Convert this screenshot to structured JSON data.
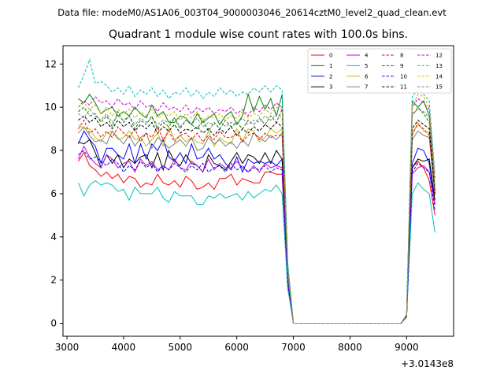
{
  "chart_data": {
    "type": "line",
    "suptitle": "Data file: modeM0/AS1A06_003T04_9000003046_20614cztM0_level2_quad_clean.evt",
    "title": "Quadrant 1 module wise count rates with 100.0s bins.",
    "xlabel": "",
    "ylabel": "",
    "x_offset_label": "+3.0143e8",
    "xlim": [
      2930,
      9830
    ],
    "ylim": [
      -0.6,
      12.85
    ],
    "xticks": [
      3000,
      4000,
      5000,
      6000,
      7000,
      8000,
      9000
    ],
    "yticks": [
      0,
      2,
      4,
      6,
      8,
      10,
      12
    ],
    "x": [
      3200,
      3300,
      3400,
      3500,
      3600,
      3700,
      3800,
      3900,
      4000,
      4100,
      4200,
      4300,
      4400,
      4500,
      4600,
      4700,
      4800,
      4900,
      5000,
      5100,
      5200,
      5300,
      5400,
      5500,
      5600,
      5700,
      5800,
      5900,
      6000,
      6100,
      6200,
      6300,
      6400,
      6500,
      6600,
      6700,
      6800,
      6900,
      7000,
      7100,
      7200,
      7300,
      7400,
      7500,
      7600,
      7700,
      7800,
      7900,
      8000,
      8100,
      8200,
      8300,
      8400,
      8500,
      8600,
      8700,
      8800,
      8900,
      9000,
      9100,
      9200,
      9300,
      9400,
      9500
    ],
    "legend": {
      "location": "upper right",
      "ncol": 4
    },
    "series": [
      {
        "name": "0",
        "color": "#ff0000",
        "dash": "solid",
        "values": [
          7.5,
          7.9,
          7.3,
          7.1,
          6.8,
          7.0,
          6.7,
          6.9,
          6.5,
          6.8,
          6.7,
          6.3,
          6.5,
          6.4,
          6.9,
          6.5,
          6.4,
          6.6,
          6.3,
          6.8,
          6.6,
          6.2,
          6.3,
          6.5,
          6.2,
          6.7,
          6.7,
          6.9,
          6.4,
          6.7,
          6.6,
          6.5,
          6.5,
          7.0,
          7.0,
          6.9,
          6.9,
          1.8,
          0,
          0,
          0,
          0,
          0,
          0,
          0,
          0,
          0,
          0,
          0,
          0,
          0,
          0,
          0,
          0,
          0,
          0,
          0,
          0,
          0.3,
          7.2,
          7.5,
          7.2,
          6.6,
          5.0
        ]
      },
      {
        "name": "1",
        "color": "#008000",
        "dash": "solid",
        "values": [
          10.4,
          10.2,
          10.6,
          10.2,
          9.7,
          9.9,
          10.0,
          9.6,
          9.8,
          9.6,
          10.0,
          9.7,
          9.5,
          10.1,
          9.6,
          9.8,
          9.3,
          9.3,
          9.6,
          9.5,
          9.2,
          9.7,
          9.3,
          9.5,
          9.7,
          9.2,
          9.6,
          9.8,
          9.2,
          9.6,
          10.6,
          9.8,
          10.5,
          9.9,
          10.4,
          9.6,
          10.6,
          2.7,
          0,
          0,
          0,
          0,
          0,
          0,
          0,
          0,
          0,
          0,
          0,
          0,
          0,
          0,
          0,
          0,
          0,
          0,
          0,
          0,
          0.4,
          10.3,
          10.0,
          10.3,
          9.6,
          6.2
        ]
      },
      {
        "name": "2",
        "color": "#0000ff",
        "dash": "solid",
        "values": [
          8.3,
          8.9,
          8.5,
          8.2,
          7.4,
          8.1,
          8.1,
          7.8,
          7.6,
          8.3,
          7.4,
          8.3,
          7.6,
          8.3,
          8.0,
          8.5,
          7.7,
          7.5,
          7.9,
          7.4,
          8.3,
          7.6,
          7.7,
          8.1,
          7.6,
          7.8,
          7.4,
          7.1,
          7.7,
          7.0,
          7.6,
          7.4,
          7.5,
          7.4,
          7.5,
          7.3,
          7.6,
          1.9,
          0,
          0,
          0,
          0,
          0,
          0,
          0,
          0,
          0,
          0,
          0,
          0,
          0,
          0,
          0,
          0,
          0,
          0,
          0,
          0,
          0.3,
          7.4,
          8.1,
          8.0,
          7.4,
          5.5
        ]
      },
      {
        "name": "3",
        "color": "#000000",
        "dash": "solid",
        "values": [
          8.4,
          8.3,
          8.5,
          7.9,
          7.2,
          7.8,
          7.4,
          7.8,
          7.2,
          7.6,
          7.4,
          7.7,
          7.8,
          7.2,
          7.9,
          7.1,
          8.0,
          7.5,
          7.3,
          7.8,
          7.4,
          7.3,
          7.0,
          7.8,
          7.4,
          7.3,
          7.1,
          7.5,
          7.9,
          7.4,
          7.8,
          7.7,
          7.4,
          7.9,
          7.4,
          8.0,
          7.6,
          2.0,
          0,
          0,
          0,
          0,
          0,
          0,
          0,
          0,
          0,
          0,
          0,
          0,
          0,
          0,
          0,
          0,
          0,
          0,
          0,
          0,
          0.3,
          7.2,
          7.6,
          7.5,
          7.6,
          5.7
        ]
      },
      {
        "name": "4",
        "color": "#cc00cc",
        "dash": "solid",
        "values": [
          7.6,
          8.2,
          7.7,
          7.4,
          7.2,
          7.8,
          7.6,
          7.2,
          7.4,
          7.5,
          7.0,
          7.6,
          7.3,
          7.5,
          7.1,
          7.3,
          7.1,
          7.6,
          7.2,
          7.1,
          7.5,
          7.3,
          7.0,
          7.6,
          7.1,
          7.4,
          7.2,
          7.2,
          7.5,
          7.2,
          7.0,
          7.3,
          7.0,
          7.4,
          7.2,
          7.3,
          7.2,
          1.9,
          0,
          0,
          0,
          0,
          0,
          0,
          0,
          0,
          0,
          0,
          0,
          0,
          0,
          0,
          0,
          0,
          0,
          0,
          0,
          0,
          0.3,
          6.9,
          7.2,
          7.3,
          7.0,
          5.5
        ]
      },
      {
        "name": "5",
        "color": "#00bfbf",
        "dash": "solid",
        "values": [
          6.5,
          5.9,
          6.4,
          6.6,
          6.4,
          6.5,
          6.4,
          6.1,
          6.2,
          5.7,
          6.3,
          6.0,
          6.0,
          6.0,
          6.3,
          5.8,
          5.6,
          6.1,
          5.9,
          5.9,
          5.9,
          5.5,
          5.5,
          5.9,
          5.8,
          6.0,
          5.8,
          5.9,
          6.0,
          5.7,
          6.1,
          5.8,
          6.0,
          6.2,
          6.1,
          6.4,
          6.0,
          1.6,
          0,
          0,
          0,
          0,
          0,
          0,
          0,
          0,
          0,
          0,
          0,
          0,
          0,
          0,
          0,
          0,
          0,
          0,
          0,
          0,
          0.3,
          6.0,
          6.5,
          6.2,
          6.0,
          4.2
        ]
      },
      {
        "name": "6",
        "color": "#bfbf00",
        "dash": "solid",
        "values": [
          9.2,
          9.0,
          9.0,
          8.6,
          8.4,
          8.8,
          8.9,
          8.5,
          8.6,
          8.9,
          8.5,
          8.6,
          8.2,
          8.5,
          8.8,
          8.2,
          9.1,
          8.5,
          8.7,
          8.4,
          8.6,
          8.4,
          8.3,
          8.9,
          8.2,
          8.6,
          8.4,
          8.3,
          9.0,
          8.4,
          9.0,
          8.9,
          8.4,
          8.6,
          9.0,
          8.8,
          9.0,
          2.3,
          0,
          0,
          0,
          0,
          0,
          0,
          0,
          0,
          0,
          0,
          0,
          0,
          0,
          0,
          0,
          0,
          0,
          0,
          0,
          0,
          0.3,
          8.7,
          9.3,
          8.9,
          8.8,
          6.0
        ]
      },
      {
        "name": "7",
        "color": "#808080",
        "dash": "solid",
        "values": [
          8.8,
          9.1,
          8.7,
          8.4,
          8.5,
          8.3,
          8.9,
          8.6,
          8.3,
          8.7,
          8.2,
          8.6,
          8.8,
          8.1,
          8.6,
          8.4,
          8.1,
          8.3,
          8.5,
          8.2,
          8.6,
          8.0,
          8.1,
          8.6,
          8.3,
          8.5,
          8.2,
          8.4,
          8.1,
          8.5,
          8.2,
          8.8,
          8.6,
          8.4,
          8.7,
          8.5,
          8.8,
          2.2,
          0,
          0,
          0,
          0,
          0,
          0,
          0,
          0,
          0,
          0,
          0,
          0,
          0,
          0,
          0,
          0,
          0,
          0,
          0,
          0,
          0.3,
          8.5,
          8.9,
          8.7,
          8.6,
          5.9
        ]
      },
      {
        "name": "8",
        "color": "#ff0000",
        "dash": "dashed",
        "values": [
          9.0,
          9.4,
          8.8,
          9.0,
          8.6,
          8.9,
          8.6,
          9.1,
          8.8,
          8.6,
          9.0,
          8.4,
          8.8,
          8.6,
          9.1,
          8.5,
          8.9,
          8.4,
          8.7,
          8.8,
          8.5,
          8.8,
          8.4,
          8.7,
          8.5,
          8.9,
          8.6,
          8.6,
          8.8,
          8.4,
          8.7,
          8.8,
          8.5,
          8.8,
          8.6,
          8.7,
          8.7,
          2.3,
          0,
          0,
          0,
          0,
          0,
          0,
          0,
          0,
          0,
          0,
          0,
          0,
          0,
          0,
          0,
          0,
          0,
          0,
          0,
          0,
          0.3,
          8.8,
          9.2,
          9.0,
          8.7,
          6.1
        ]
      },
      {
        "name": "9",
        "color": "#008000",
        "dash": "dashed",
        "values": [
          9.8,
          10.0,
          9.6,
          9.7,
          9.3,
          9.6,
          9.1,
          9.8,
          9.3,
          9.6,
          9.0,
          9.4,
          9.2,
          9.6,
          9.0,
          9.3,
          9.1,
          9.5,
          9.0,
          9.4,
          9.2,
          9.0,
          9.4,
          8.9,
          9.3,
          9.0,
          9.4,
          9.1,
          9.3,
          9.0,
          9.4,
          9.2,
          9.5,
          9.2,
          9.6,
          9.3,
          9.9,
          2.5,
          0,
          0,
          0,
          0,
          0,
          0,
          0,
          0,
          0,
          0,
          0,
          0,
          0,
          0,
          0,
          0,
          0,
          0,
          0,
          0,
          0.3,
          9.6,
          10.0,
          9.7,
          9.3,
          6.3
        ]
      },
      {
        "name": "10",
        "color": "#0000ff",
        "dash": "dashed",
        "values": [
          7.8,
          8.0,
          7.6,
          7.7,
          7.5,
          7.3,
          7.6,
          7.4,
          7.0,
          7.3,
          7.1,
          7.5,
          7.2,
          7.4,
          7.0,
          7.3,
          7.1,
          7.4,
          7.2,
          7.0,
          7.3,
          7.1,
          7.4,
          7.0,
          7.2,
          7.3,
          7.0,
          7.4,
          7.1,
          7.3,
          7.0,
          7.2,
          7.1,
          7.3,
          7.0,
          7.2,
          7.1,
          1.9,
          0,
          0,
          0,
          0,
          0,
          0,
          0,
          0,
          0,
          0,
          0,
          0,
          0,
          0,
          0,
          0,
          0,
          0,
          0,
          0,
          0.3,
          7.0,
          7.4,
          7.2,
          7.0,
          5.2
        ]
      },
      {
        "name": "11",
        "color": "#000000",
        "dash": "dashed",
        "values": [
          9.4,
          9.6,
          9.3,
          9.5,
          9.1,
          9.3,
          9.0,
          9.4,
          9.1,
          9.3,
          8.9,
          9.2,
          9.0,
          9.3,
          8.8,
          9.1,
          8.9,
          9.2,
          8.8,
          9.0,
          8.9,
          9.1,
          8.8,
          9.0,
          8.7,
          9.0,
          8.8,
          9.1,
          8.7,
          9.0,
          8.8,
          9.1,
          8.9,
          9.2,
          9.0,
          9.3,
          9.1,
          2.4,
          0,
          0,
          0,
          0,
          0,
          0,
          0,
          0,
          0,
          0,
          0,
          0,
          0,
          0,
          0,
          0,
          0,
          0,
          0,
          0,
          0.3,
          9.0,
          9.4,
          9.2,
          9.0,
          6.0
        ]
      },
      {
        "name": "12",
        "color": "#cc00cc",
        "dash": "dashed",
        "values": [
          10.0,
          10.3,
          10.1,
          10.5,
          10.2,
          10.3,
          10.0,
          10.4,
          10.1,
          10.2,
          9.9,
          10.3,
          10.0,
          10.1,
          9.8,
          10.2,
          9.9,
          10.0,
          9.8,
          10.1,
          9.7,
          10.0,
          9.8,
          10.0,
          9.7,
          9.9,
          9.8,
          10.0,
          9.7,
          9.9,
          9.6,
          10.0,
          9.8,
          10.1,
          9.9,
          10.2,
          10.0,
          2.6,
          0,
          0,
          0,
          0,
          0,
          0,
          0,
          0,
          0,
          0,
          0,
          0,
          0,
          0,
          0,
          0,
          0,
          0,
          0,
          0,
          0.4,
          10.0,
          10.4,
          10.2,
          9.9,
          6.6
        ]
      },
      {
        "name": "13",
        "color": "#00bfbf",
        "dash": "dashed",
        "values": [
          10.9,
          11.5,
          12.2,
          11.1,
          11.2,
          11.0,
          10.7,
          10.9,
          10.6,
          11.0,
          10.5,
          10.8,
          10.6,
          10.9,
          10.5,
          10.8,
          10.4,
          10.7,
          10.6,
          10.9,
          10.5,
          10.8,
          10.4,
          10.7,
          10.5,
          10.9,
          10.6,
          10.8,
          10.5,
          10.7,
          10.6,
          10.9,
          10.7,
          11.0,
          10.7,
          11.0,
          10.8,
          2.8,
          0,
          0,
          0,
          0,
          0,
          0,
          0,
          0,
          0,
          0,
          0,
          0,
          0,
          0,
          0,
          0,
          0,
          0,
          0,
          0,
          0.4,
          10.5,
          10.8,
          10.6,
          10.3,
          6.9
        ]
      },
      {
        "name": "14",
        "color": "#bfbf00",
        "dash": "dashed",
        "values": [
          10.0,
          10.2,
          9.9,
          10.1,
          9.7,
          10.0,
          9.6,
          9.9,
          9.7,
          9.9,
          9.5,
          9.8,
          9.6,
          9.9,
          9.5,
          9.7,
          9.6,
          9.8,
          9.4,
          9.7,
          9.5,
          9.8,
          9.4,
          9.6,
          9.5,
          9.7,
          9.4,
          9.6,
          9.5,
          9.8,
          9.5,
          9.7,
          9.6,
          9.9,
          9.7,
          10.0,
          9.9,
          2.5,
          0,
          0,
          0,
          0,
          0,
          0,
          0,
          0,
          0,
          0,
          0,
          0,
          0,
          0,
          0,
          0,
          0,
          0,
          0,
          0,
          0.4,
          10.0,
          10.6,
          10.5,
          10.0,
          6.5
        ]
      },
      {
        "name": "15",
        "color": "#808080",
        "dash": "dashed",
        "values": [
          9.7,
          9.5,
          9.9,
          9.6,
          9.4,
          9.7,
          9.3,
          9.6,
          9.4,
          9.6,
          9.2,
          9.5,
          9.3,
          9.5,
          9.2,
          9.4,
          9.3,
          9.5,
          9.1,
          9.4,
          9.2,
          9.5,
          9.1,
          9.3,
          9.2,
          9.4,
          9.1,
          9.3,
          9.2,
          9.5,
          9.2,
          9.4,
          9.3,
          9.6,
          9.4,
          9.7,
          9.5,
          2.4,
          0,
          0,
          0,
          0,
          0,
          0,
          0,
          0,
          0,
          0,
          0,
          0,
          0,
          0,
          0,
          0,
          0,
          0,
          0,
          0,
          0.3,
          9.7,
          9.9,
          9.8,
          9.5,
          6.2
        ]
      }
    ]
  }
}
